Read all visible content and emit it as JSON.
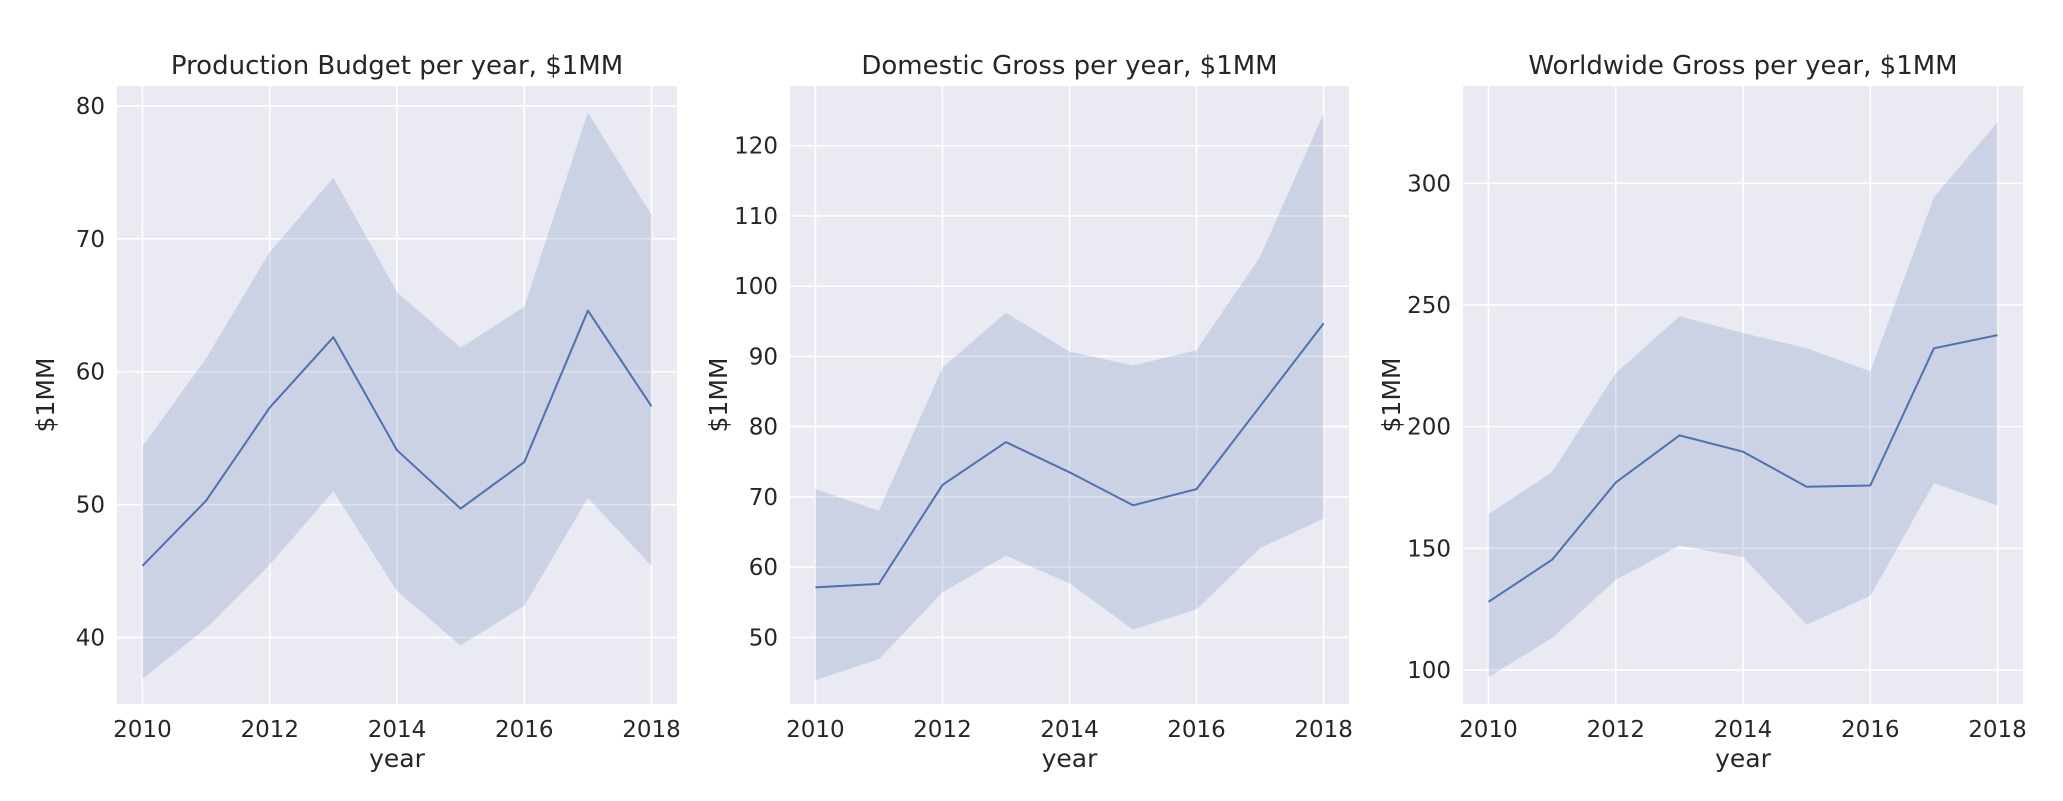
{
  "chart_data": [
    {
      "type": "line",
      "title": "Production Budget per year, $1MM",
      "xlabel": "year",
      "ylabel": "$1MM",
      "x": [
        2010,
        2011,
        2012,
        2013,
        2014,
        2015,
        2016,
        2017,
        2018
      ],
      "series": [
        {
          "values": [
            45.4,
            50.3,
            57.3,
            62.6,
            54.1,
            49.7,
            53.2,
            64.6,
            57.4
          ],
          "ci_low": [
            36.9,
            40.7,
            45.5,
            51.0,
            43.5,
            39.4,
            42.4,
            50.5,
            45.4
          ],
          "ci_high": [
            54.4,
            61.0,
            69.0,
            74.6,
            66.0,
            61.8,
            64.9,
            79.5,
            71.8
          ]
        }
      ],
      "xlim": [
        2009.6,
        2018.4
      ],
      "ylim": [
        35,
        81.5
      ],
      "xticks": [
        2010,
        2012,
        2014,
        2016,
        2018
      ],
      "yticks": [
        40,
        50,
        60,
        70,
        80
      ],
      "grid": true
    },
    {
      "type": "line",
      "title": "Domestic Gross per year, $1MM",
      "xlabel": "year",
      "ylabel": "$1MM",
      "x": [
        2010,
        2011,
        2012,
        2013,
        2014,
        2015,
        2016,
        2017,
        2018
      ],
      "series": [
        {
          "values": [
            57.1,
            57.6,
            71.7,
            77.8,
            73.5,
            68.8,
            71.1,
            82.9,
            94.7
          ],
          "ci_low": [
            43.9,
            46.9,
            56.4,
            61.6,
            57.7,
            51.1,
            54.0,
            62.7,
            66.9
          ],
          "ci_high": [
            71.1,
            68.0,
            88.4,
            96.2,
            90.7,
            88.7,
            90.9,
            104.2,
            124.6
          ]
        }
      ],
      "xlim": [
        2009.6,
        2018.4
      ],
      "ylim": [
        40.5,
        128.5
      ],
      "xticks": [
        2010,
        2012,
        2014,
        2016,
        2018
      ],
      "yticks": [
        50,
        60,
        70,
        80,
        90,
        100,
        110,
        120
      ],
      "grid": true
    },
    {
      "type": "line",
      "title": "Worldwide Gross per year, $1MM",
      "xlabel": "year",
      "ylabel": "$1MM",
      "x": [
        2010,
        2011,
        2012,
        2013,
        2014,
        2015,
        2016,
        2017,
        2018
      ],
      "series": [
        {
          "values": [
            128.0,
            145.3,
            177.0,
            196.4,
            189.7,
            175.3,
            175.8,
            232.2,
            237.6
          ],
          "ci_low": [
            97.0,
            113.2,
            137.0,
            151.1,
            146.4,
            118.6,
            130.5,
            176.7,
            167.6
          ],
          "ci_high": [
            164.0,
            181.3,
            221.9,
            245.4,
            238.5,
            232.2,
            222.8,
            294.2,
            325.2
          ]
        }
      ],
      "xlim": [
        2009.6,
        2018.4
      ],
      "ylim": [
        86,
        340
      ],
      "xticks": [
        2010,
        2012,
        2014,
        2016,
        2018
      ],
      "yticks": [
        100,
        150,
        200,
        250,
        300
      ],
      "grid": true
    }
  ]
}
